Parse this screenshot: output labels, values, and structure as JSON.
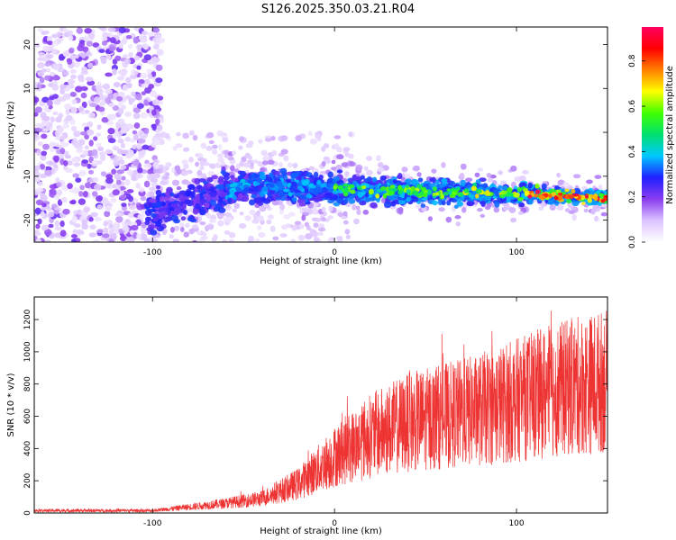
{
  "title": "S126.2025.350.03.21.R04",
  "chart_data": [
    {
      "type": "heatmap",
      "name": "spectrogram",
      "xlabel": "Height of straight line (km)",
      "ylabel": "Frequency (Hz)",
      "xlim": [
        -165,
        150
      ],
      "ylim": [
        -25,
        24
      ],
      "xticks": [
        -100,
        0,
        100
      ],
      "yticks": [
        20,
        10,
        0,
        -10,
        -20
      ],
      "colorbar": {
        "label": "Normalized spectral amplitude",
        "range": [
          0,
          0.95
        ],
        "ticks": [
          0.0,
          0.2,
          0.4,
          0.6,
          0.8
        ],
        "tick_labels": [
          "0.0",
          "0.2",
          "0.4",
          "0.6",
          "0.8"
        ],
        "colors": [
          "#ffffff",
          "#dcc3ff",
          "#8a3cf0",
          "#2020ff",
          "#00c8ff",
          "#00e070",
          "#40ff00",
          "#ffff00",
          "#ff8000",
          "#ff0000",
          "#ff0060"
        ]
      },
      "ridge": {
        "x": [
          -100,
          -50,
          0,
          50,
          100,
          150
        ],
        "frequency": [
          -18,
          -12,
          -13,
          -13.5,
          -14,
          -15
        ]
      }
    },
    {
      "type": "line",
      "name": "snr",
      "xlabel": "Height of straight line (km)",
      "ylabel": "SNR (10 * v/v)",
      "xlim": [
        -165,
        150
      ],
      "ylim": [
        0,
        1340
      ],
      "xticks": [
        -100,
        0,
        100
      ],
      "yticks": [
        0,
        200,
        400,
        600,
        800,
        1000,
        1200
      ],
      "color": "#ee3333",
      "trend": {
        "x": [
          -165,
          -100,
          -60,
          -40,
          -20,
          0,
          20,
          40,
          60,
          80,
          100,
          120,
          150
        ],
        "y": [
          15,
          15,
          60,
          90,
          180,
          350,
          480,
          560,
          600,
          640,
          700,
          760,
          820
        ]
      }
    }
  ]
}
